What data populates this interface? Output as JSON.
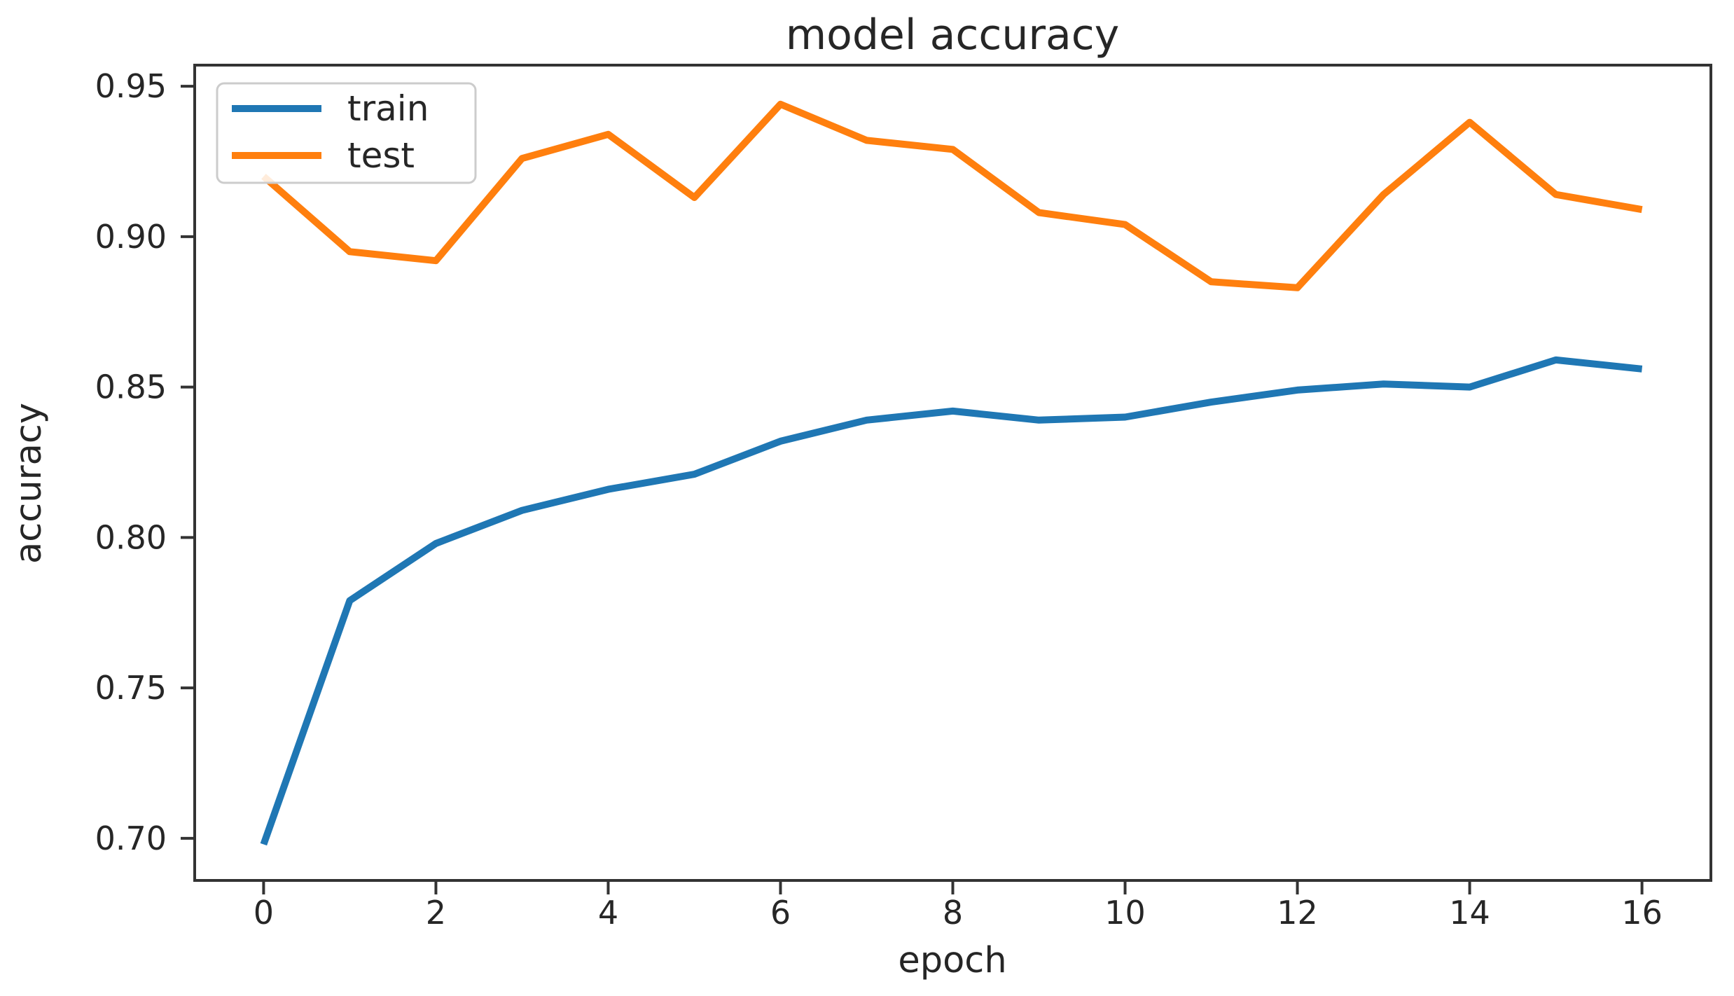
{
  "figure": {
    "title": "model accuracy",
    "xlabel": "epoch",
    "ylabel": "accuracy"
  },
  "legend": {
    "position": "upper left",
    "items": [
      {
        "label": "train",
        "color": "#1f77b4"
      },
      {
        "label": "test",
        "color": "#ff7f0e"
      }
    ]
  },
  "colors": {
    "train": "#1f77b4",
    "test": "#ff7f0e",
    "spine": "#333333",
    "tick": "#333333",
    "text": "#262626",
    "legend_border": "#cccccc",
    "background": "#ffffff"
  },
  "chart_data": {
    "type": "line",
    "title": "model accuracy",
    "xlabel": "epoch",
    "ylabel": "accuracy",
    "x": [
      0,
      1,
      2,
      3,
      4,
      5,
      6,
      7,
      8,
      9,
      10,
      11,
      12,
      13,
      14,
      15,
      16
    ],
    "series": [
      {
        "name": "train",
        "color": "#1f77b4",
        "values": [
          0.698,
          0.779,
          0.798,
          0.809,
          0.816,
          0.821,
          0.832,
          0.839,
          0.842,
          0.839,
          0.84,
          0.845,
          0.849,
          0.851,
          0.85,
          0.859,
          0.856
        ]
      },
      {
        "name": "test",
        "color": "#ff7f0e",
        "values": [
          0.92,
          0.895,
          0.892,
          0.926,
          0.934,
          0.913,
          0.944,
          0.932,
          0.929,
          0.908,
          0.904,
          0.885,
          0.883,
          0.914,
          0.938,
          0.914,
          0.909
        ]
      }
    ],
    "x_ticks": [
      0,
      2,
      4,
      6,
      8,
      10,
      12,
      14,
      16
    ],
    "x_tick_labels": [
      "0",
      "2",
      "4",
      "6",
      "8",
      "10",
      "12",
      "14",
      "16"
    ],
    "y_ticks": [
      0.7,
      0.75,
      0.8,
      0.85,
      0.9,
      0.95
    ],
    "y_tick_labels": [
      "0.70",
      "0.75",
      "0.80",
      "0.85",
      "0.90",
      "0.95"
    ],
    "xlim": [
      -0.8,
      16.8
    ],
    "ylim": [
      0.686,
      0.957
    ],
    "grid": false,
    "legend_position": "upper left"
  }
}
